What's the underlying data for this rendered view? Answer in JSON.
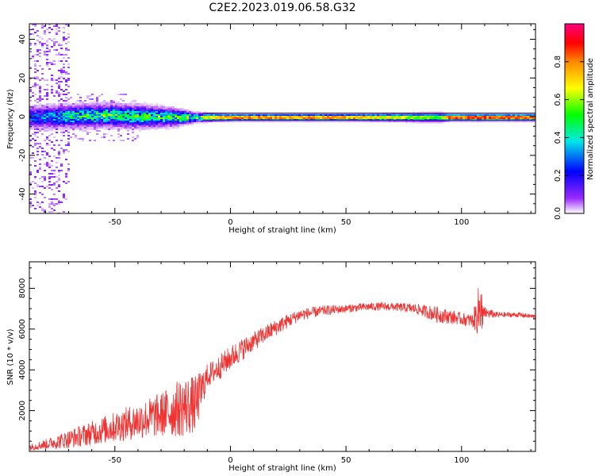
{
  "title": "C2E2.2023.019.06.58.G32",
  "chart_data": [
    {
      "type": "heatmap",
      "xlabel": "Height of straight line (km)",
      "ylabel": "Frequency (Hz)",
      "xlim": [
        -87,
        132
      ],
      "ylim": [
        -50,
        48
      ],
      "xticks": [
        -50,
        0,
        50,
        100
      ],
      "yticks": [
        -40,
        -20,
        0,
        20,
        40
      ],
      "colorbar": {
        "label": "Normalized spectral amplitude",
        "range": [
          0,
          1
        ],
        "ticks": [
          "0.0",
          "0.2",
          "0.4",
          "0.6",
          "0.8"
        ],
        "tick_values": [
          0,
          0.2,
          0.4,
          0.6,
          0.8
        ],
        "colors": [
          "#ffffff",
          "#9a2aff",
          "#0000ff",
          "#00e8e8",
          "#00ff00",
          "#ffff00",
          "#ff8800",
          "#ff0000",
          "#ff0080"
        ]
      },
      "band": [
        {
          "x": -85,
          "center": 0,
          "halfwidth": 5,
          "peak": 0.3
        },
        {
          "x": -70,
          "center": 0.5,
          "halfwidth": 5,
          "peak": 0.45
        },
        {
          "x": -55,
          "center": 1,
          "halfwidth": 5,
          "peak": 0.5
        },
        {
          "x": -40,
          "center": 0.5,
          "halfwidth": 5,
          "peak": 0.48
        },
        {
          "x": -25,
          "center": 0,
          "halfwidth": 4,
          "peak": 0.5
        },
        {
          "x": -15,
          "center": 0,
          "halfwidth": 2,
          "peak": 0.6
        },
        {
          "x": 0,
          "center": 0,
          "halfwidth": 1.5,
          "peak": 0.85
        },
        {
          "x": 50,
          "center": 0,
          "halfwidth": 1.5,
          "peak": 0.8
        },
        {
          "x": 90,
          "center": 0,
          "halfwidth": 2,
          "peak": 0.55
        },
        {
          "x": 95,
          "center": 0,
          "halfwidth": 1.5,
          "peak": 0.9
        },
        {
          "x": 130,
          "center": 0,
          "halfwidth": 1.5,
          "peak": 0.9
        }
      ]
    },
    {
      "type": "line",
      "xlabel": "Height of straight line (km)",
      "ylabel": "SNR (10 * v/v)",
      "xlim": [
        -87,
        132
      ],
      "ylim": [
        0,
        9300
      ],
      "xticks": [
        -50,
        0,
        50,
        100
      ],
      "yticks": [
        2000,
        4000,
        6000,
        8000
      ],
      "color": "#ee3333",
      "series": [
        {
          "x": [
            -87,
            -80,
            -70,
            -60,
            -50,
            -40,
            -30,
            -20,
            -15,
            -10,
            -5,
            0,
            5,
            10,
            20,
            30,
            40,
            50,
            60,
            70,
            80,
            90,
            95,
            100,
            105,
            108,
            110,
            115,
            120,
            125,
            132
          ],
          "values": [
            200,
            350,
            600,
            900,
            1200,
            1500,
            1800,
            2200,
            2300,
            3700,
            4100,
            4600,
            5000,
            5400,
            6100,
            6700,
            6900,
            7000,
            7100,
            7100,
            7000,
            6700,
            6600,
            6500,
            6400,
            7000,
            6800,
            6700,
            6700,
            6700,
            6600
          ],
          "noise": [
            150,
            250,
            450,
            600,
            750,
            900,
            1100,
            1500,
            1400,
            600,
            600,
            600,
            550,
            450,
            400,
            300,
            250,
            200,
            200,
            200,
            250,
            400,
            350,
            300,
            350,
            1500,
            300,
            150,
            130,
            120,
            120
          ]
        }
      ]
    }
  ]
}
